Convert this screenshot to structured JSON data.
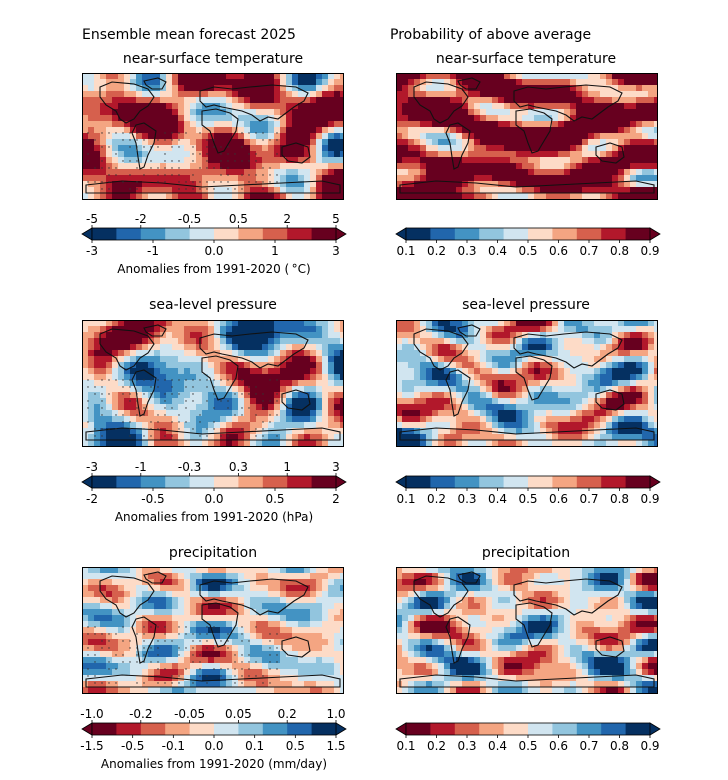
{
  "titles": {
    "left_heading": "Ensemble mean forecast 2025",
    "right_heading": "Probability of above average"
  },
  "rows": [
    {
      "variable": "near-surface temperature",
      "left_label": "Anomalies from 1991-2020 ( °C)",
      "left_ticks_top": [
        "-5",
        "-2",
        "-0.5",
        "0.5",
        "2",
        "5"
      ],
      "left_ticks_bottom": [
        "-3",
        "-1",
        "0.0",
        "1",
        "3"
      ],
      "left_palette": "redblue",
      "right_palette": "redblue"
    },
    {
      "variable": "sea-level pressure",
      "left_label": "Anomalies from 1991-2020 (hPa)",
      "left_ticks_top": [
        "-3",
        "-1",
        "-0.3",
        "0.3",
        "1",
        "3"
      ],
      "left_ticks_bottom": [
        "-2",
        "-0.5",
        "0.0",
        "0.5",
        "2"
      ],
      "left_palette": "redblue",
      "right_palette": "redblue"
    },
    {
      "variable": "precipitation",
      "left_label": "Anomalies from 1991-2020 (mm/day)",
      "left_ticks_top": [
        "-1.0",
        "-0.2",
        "-0.05",
        "0.05",
        "0.2",
        "1.0"
      ],
      "left_ticks_bottom": [
        "-1.5",
        "-0.5",
        "-0.1",
        "0.0",
        "0.1",
        "0.5",
        "1.5"
      ],
      "left_palette": "brownblue",
      "right_palette": "brownblue"
    }
  ],
  "probability_ticks": [
    "0.1",
    "0.2",
    "0.3",
    "0.4",
    "0.5",
    "0.6",
    "0.7",
    "0.8",
    "0.9"
  ],
  "colors": {
    "redblue": [
      "#053061",
      "#2166ac",
      "#4393c3",
      "#92c5de",
      "#d1e5f0",
      "#fddbc7",
      "#f4a582",
      "#d6604d",
      "#b2182b",
      "#67001f"
    ],
    "brownblue": [
      "#67001f",
      "#b2182b",
      "#d6604d",
      "#f4a582",
      "#fddbc7",
      "#d1e5f0",
      "#92c5de",
      "#4393c3",
      "#2166ac",
      "#053061"
    ],
    "land_outline": "#111111",
    "stipple": "#333333"
  },
  "chart_data": [
    {
      "type": "heatmap",
      "panel": "ensemble-mean",
      "variable": "near-surface temperature",
      "colorbar_range": [
        -5,
        5
      ],
      "units": "°C"
    },
    {
      "type": "heatmap",
      "panel": "probability-above-average",
      "variable": "near-surface temperature",
      "colorbar_range": [
        0.1,
        0.9
      ]
    },
    {
      "type": "heatmap",
      "panel": "ensemble-mean",
      "variable": "sea-level pressure",
      "colorbar_range": [
        -3,
        3
      ],
      "units": "hPa"
    },
    {
      "type": "heatmap",
      "panel": "probability-above-average",
      "variable": "sea-level pressure",
      "colorbar_range": [
        0.1,
        0.9
      ]
    },
    {
      "type": "heatmap",
      "panel": "ensemble-mean",
      "variable": "precipitation",
      "colorbar_range": [
        -1.5,
        1.5
      ],
      "units": "mm/day"
    },
    {
      "type": "heatmap",
      "panel": "probability-above-average",
      "variable": "precipitation",
      "colorbar_range": [
        0.1,
        0.9
      ]
    }
  ]
}
